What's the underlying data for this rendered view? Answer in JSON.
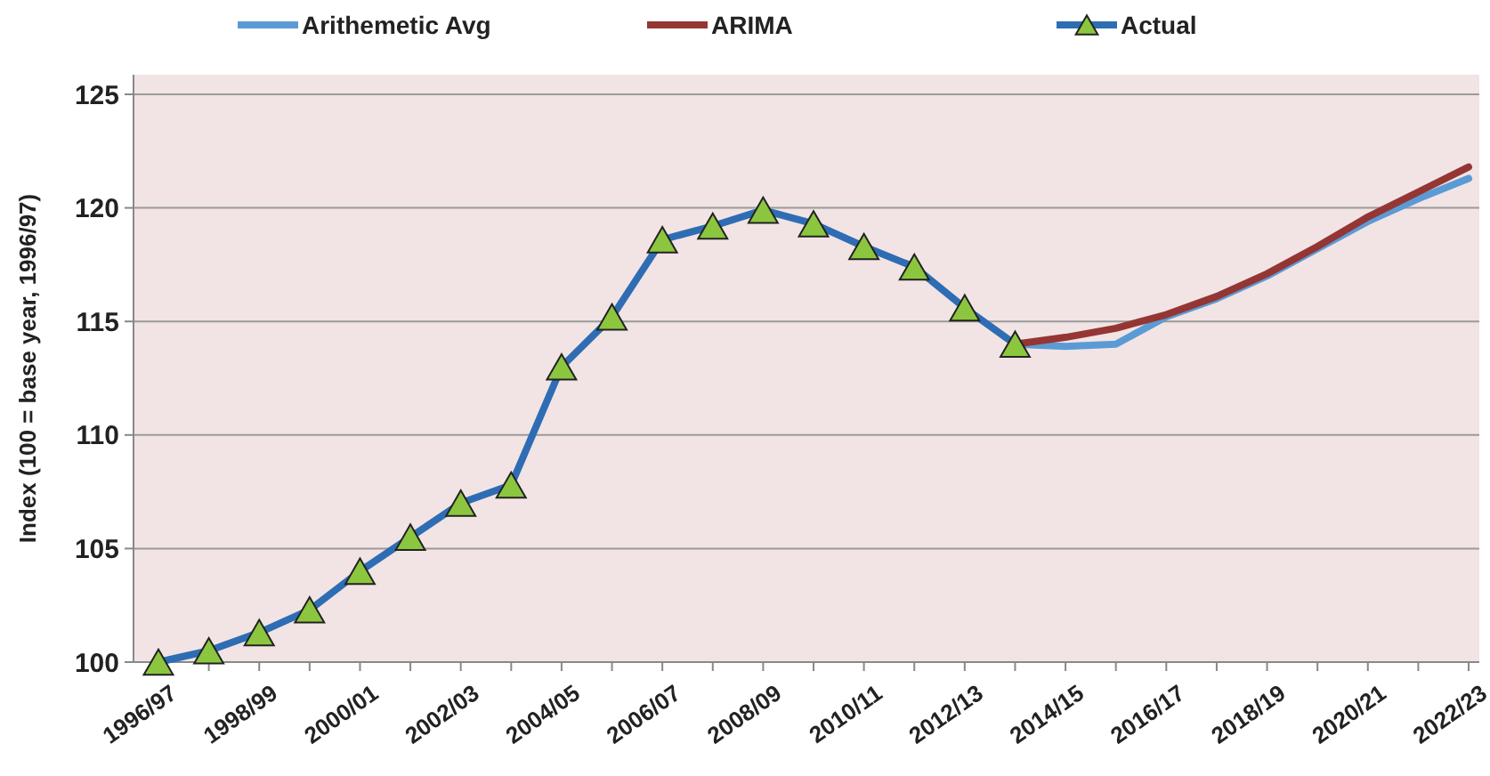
{
  "chart_data": {
    "type": "line",
    "ylabel": "Index (100 = base year, 1996/97)",
    "categories": [
      "1996/97",
      null,
      "1998/99",
      null,
      "2000/01",
      null,
      "2002/03",
      null,
      "2004/05",
      null,
      "2006/07",
      null,
      "2008/09",
      null,
      "2010/11",
      null,
      "2012/13",
      null,
      "2014/15",
      null,
      "2016/17",
      null,
      "2018/19",
      null,
      "2020/21",
      null,
      "2022/23"
    ],
    "ylim": [
      100,
      125
    ],
    "yticks": [
      100,
      105,
      110,
      115,
      120,
      125
    ],
    "grid": "y",
    "legend": "top",
    "series": [
      {
        "name": "Arithemetic Avg",
        "color": "#5b9bd5",
        "marker": "none",
        "values": [
          null,
          null,
          null,
          null,
          null,
          null,
          null,
          null,
          null,
          null,
          null,
          null,
          null,
          null,
          null,
          null,
          null,
          114.0,
          113.9,
          114.0,
          115.2,
          116.0,
          117.0,
          118.2,
          119.4,
          120.4,
          121.3
        ]
      },
      {
        "name": "ARIMA",
        "color": "#943634",
        "marker": "none",
        "values": [
          null,
          null,
          null,
          null,
          null,
          null,
          null,
          null,
          null,
          null,
          null,
          null,
          null,
          null,
          null,
          null,
          null,
          114.0,
          114.3,
          114.7,
          115.3,
          116.1,
          117.1,
          118.3,
          119.6,
          120.7,
          121.8
        ]
      },
      {
        "name": "Actual",
        "color": "#2e6db4",
        "marker": "triangle",
        "values": [
          100.0,
          100.5,
          101.3,
          102.3,
          104.0,
          105.5,
          107.0,
          107.8,
          113.0,
          115.2,
          118.6,
          119.2,
          119.9,
          119.3,
          118.3,
          117.4,
          115.6,
          114.0,
          null,
          null,
          null,
          null,
          null,
          null,
          null,
          null,
          null
        ]
      }
    ]
  }
}
